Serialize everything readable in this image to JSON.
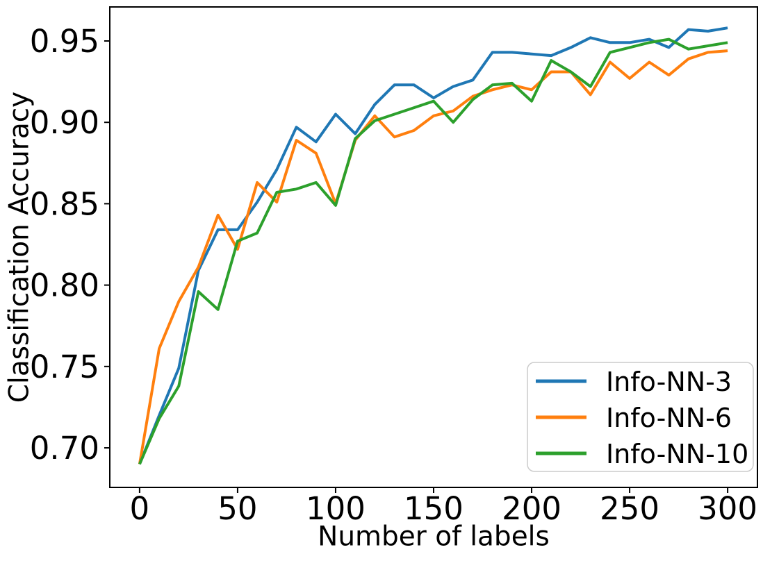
{
  "chart_data": {
    "type": "line",
    "title": "",
    "xlabel": "Number of labels",
    "ylabel": "Classification Accuracy",
    "x": [
      0,
      10,
      20,
      30,
      40,
      50,
      60,
      70,
      80,
      90,
      100,
      110,
      120,
      130,
      140,
      150,
      160,
      170,
      180,
      190,
      200,
      210,
      220,
      230,
      240,
      250,
      260,
      270,
      280,
      290,
      300
    ],
    "series": [
      {
        "name": "Info-NN-3",
        "color": "#1f77b4",
        "values": [
          0.69,
          0.72,
          0.749,
          0.809,
          0.834,
          0.834,
          0.851,
          0.871,
          0.897,
          0.888,
          0.905,
          0.893,
          0.911,
          0.923,
          0.923,
          0.915,
          0.922,
          0.926,
          0.943,
          0.943,
          0.942,
          0.941,
          0.946,
          0.952,
          0.949,
          0.949,
          0.951,
          0.946,
          0.957,
          0.956,
          0.958
        ]
      },
      {
        "name": "Info-NN-6",
        "color": "#ff7f0e",
        "values": [
          0.69,
          0.761,
          0.79,
          0.811,
          0.843,
          0.822,
          0.863,
          0.851,
          0.889,
          0.881,
          0.85,
          0.889,
          0.904,
          0.891,
          0.895,
          0.904,
          0.907,
          0.916,
          0.92,
          0.923,
          0.92,
          0.931,
          0.931,
          0.917,
          0.937,
          0.927,
          0.937,
          0.929,
          0.939,
          0.943,
          0.944
        ]
      },
      {
        "name": "Info-NN-10",
        "color": "#2ca02c",
        "values": [
          0.69,
          0.718,
          0.738,
          0.796,
          0.785,
          0.827,
          0.832,
          0.857,
          0.859,
          0.863,
          0.849,
          0.89,
          0.901,
          0.905,
          0.909,
          0.913,
          0.9,
          0.914,
          0.923,
          0.924,
          0.913,
          0.938,
          0.931,
          0.922,
          0.943,
          0.946,
          0.949,
          0.951,
          0.945,
          0.947,
          0.949
        ]
      }
    ],
    "xticks": [
      0,
      50,
      100,
      150,
      200,
      250,
      300
    ],
    "xtick_labels": [
      "0",
      "50",
      "100",
      "150",
      "200",
      "250",
      "300"
    ],
    "yticks": [
      0.7,
      0.75,
      0.8,
      0.85,
      0.9,
      0.95
    ],
    "ytick_labels": [
      "0.70",
      "0.75",
      "0.80",
      "0.85",
      "0.90",
      "0.95"
    ],
    "xlim": [
      -15.2,
      315.2
    ],
    "ylim": [
      0.6757,
      0.9709
    ],
    "grid": false,
    "legend": {
      "location": "lower right",
      "entries": [
        "Info-NN-3",
        "Info-NN-6",
        "Info-NN-10"
      ],
      "border_color": "#cccccc",
      "background": "#ffffff"
    },
    "axis_color": "#000000",
    "background": "#ffffff"
  }
}
